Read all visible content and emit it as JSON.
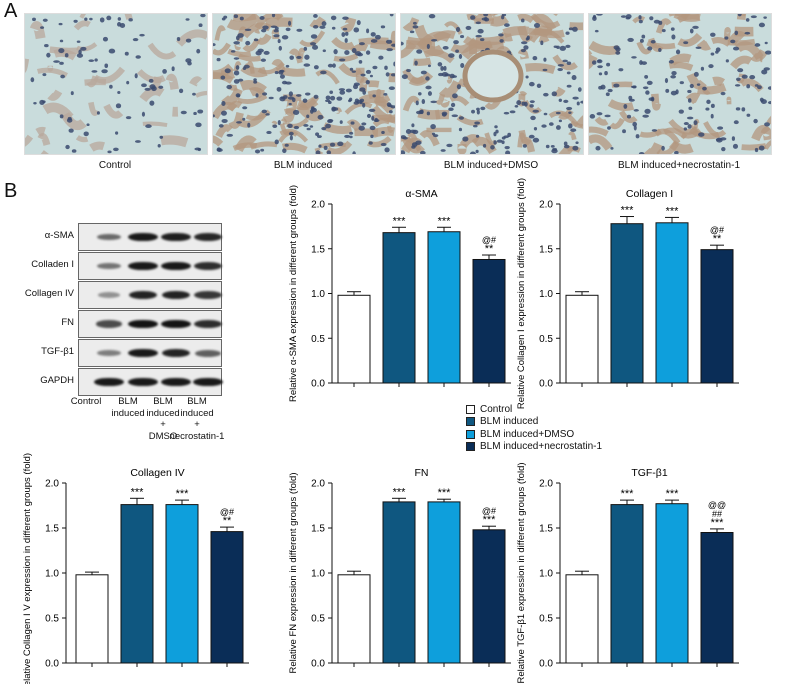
{
  "panels": {
    "a": "A",
    "b": "B"
  },
  "micrographs": [
    {
      "caption": "Control"
    },
    {
      "caption": "BLM induced"
    },
    {
      "caption": "BLM induced+DMSO"
    },
    {
      "caption": "BLM induced+necrostatin-1"
    }
  ],
  "blot": {
    "rows": [
      "α-SMA",
      "Colladen I",
      "Collagen IV",
      "FN",
      "TGF-β1",
      "GAPDH"
    ],
    "row_intensity": [
      [
        0.55,
        0.95,
        0.92,
        0.88
      ],
      [
        0.5,
        0.95,
        0.95,
        0.85
      ],
      [
        0.35,
        0.9,
        0.9,
        0.8
      ],
      [
        0.7,
        0.98,
        0.98,
        0.85
      ],
      [
        0.45,
        0.95,
        0.9,
        0.6
      ],
      [
        0.95,
        0.95,
        0.95,
        0.95
      ]
    ],
    "lanes": [
      [
        "Control"
      ],
      [
        "BLM",
        "induced"
      ],
      [
        "BLM",
        "induced",
        "+",
        "DMSO"
      ],
      [
        "BLM",
        "induced",
        "+",
        "necrostatin-1"
      ]
    ]
  },
  "legend": [
    {
      "label": "Control",
      "color": "#ffffff"
    },
    {
      "label": "BLM induced",
      "color": "#0f5780"
    },
    {
      "label": "BLM induced+DMSO",
      "color": "#0e9fdc"
    },
    {
      "label": "BLM induced+necrostatin-1",
      "color": "#0a2d57"
    }
  ],
  "chart_data": [
    {
      "type": "bar",
      "title": "α-SMA",
      "ylabel": "Relative α-SMA expression in different groups (fold)",
      "categories": [
        "Control",
        "BLM induced",
        "BLM induced+DMSO",
        "BLM induced+necrostatin-1"
      ],
      "values": [
        0.98,
        1.68,
        1.69,
        1.38
      ],
      "errors": [
        0.04,
        0.06,
        0.05,
        0.05
      ],
      "annotations": [
        [],
        [
          "***"
        ],
        [
          "***"
        ],
        [
          "@#",
          "**"
        ]
      ],
      "ylim": [
        0,
        2.0
      ],
      "yticks": [
        "0.0",
        "0.5",
        "1.0",
        "1.5",
        "2.0"
      ]
    },
    {
      "type": "bar",
      "title": "Collagen I",
      "ylabel": "Relative Collagen I expression in different groups (fold)",
      "categories": [
        "Control",
        "BLM induced",
        "BLM induced+DMSO",
        "BLM induced+necrostatin-1"
      ],
      "values": [
        0.98,
        1.78,
        1.79,
        1.49
      ],
      "errors": [
        0.04,
        0.08,
        0.06,
        0.05
      ],
      "annotations": [
        [],
        [
          "***"
        ],
        [
          "***"
        ],
        [
          "@#",
          "**"
        ]
      ],
      "ylim": [
        0,
        2.0
      ],
      "yticks": [
        "0.0",
        "0.5",
        "1.0",
        "1.5",
        "2.0"
      ]
    },
    {
      "type": "bar",
      "title": "Collagen IV",
      "ylabel": "Relative Collagen I V expression in different groups (fold)",
      "categories": [
        "Control",
        "BLM induced",
        "BLM induced+DMSO",
        "BLM induced+necrostatin-1"
      ],
      "values": [
        0.98,
        1.76,
        1.76,
        1.46
      ],
      "errors": [
        0.03,
        0.07,
        0.05,
        0.05
      ],
      "annotations": [
        [],
        [
          "***"
        ],
        [
          "***"
        ],
        [
          "@#",
          "**"
        ]
      ],
      "ylim": [
        0,
        2.0
      ],
      "yticks": [
        "0.0",
        "0.5",
        "1.0",
        "1.5",
        "2.0"
      ]
    },
    {
      "type": "bar",
      "title": "FN",
      "ylabel": "Relative FN expression in different groups (fold)",
      "categories": [
        "Control",
        "BLM induced",
        "BLM induced+DMSO",
        "BLM induced+necrostatin-1"
      ],
      "values": [
        0.98,
        1.79,
        1.79,
        1.48
      ],
      "errors": [
        0.04,
        0.04,
        0.03,
        0.04
      ],
      "annotations": [
        [],
        [
          "***"
        ],
        [
          "***"
        ],
        [
          "@#",
          "***"
        ]
      ],
      "ylim": [
        0,
        2.0
      ],
      "yticks": [
        "0.0",
        "0.5",
        "1.0",
        "1.5",
        "2.0"
      ]
    },
    {
      "type": "bar",
      "title": "TGF-β1",
      "ylabel": "Relative TGF-β1 expression in different groups (fold)",
      "categories": [
        "Control",
        "BLM induced",
        "BLM induced+DMSO",
        "BLM induced+necrostatin-1"
      ],
      "values": [
        0.98,
        1.76,
        1.77,
        1.45
      ],
      "errors": [
        0.04,
        0.05,
        0.04,
        0.04
      ],
      "annotations": [
        [],
        [
          "***"
        ],
        [
          "***"
        ],
        [
          "@@",
          "##",
          "***"
        ]
      ],
      "ylim": [
        0,
        2.0
      ],
      "yticks": [
        "0.0",
        "0.5",
        "1.0",
        "1.5",
        "2.0"
      ]
    }
  ]
}
